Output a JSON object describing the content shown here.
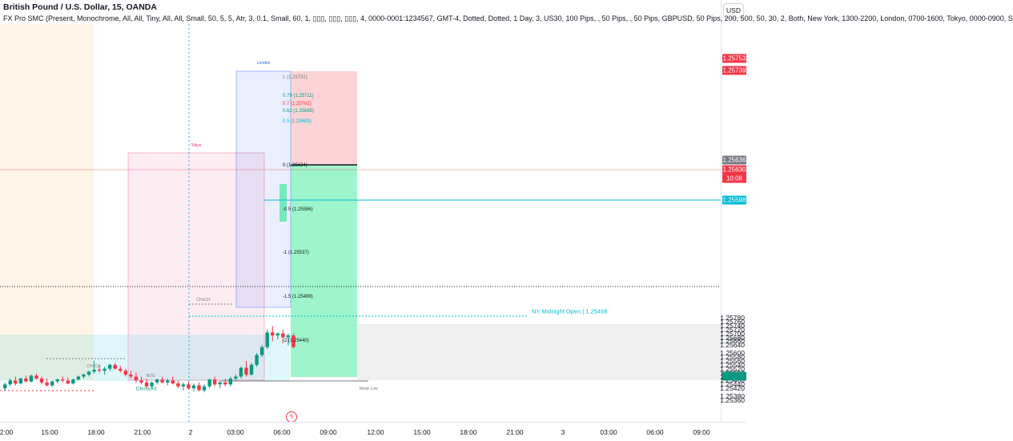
{
  "legend": {
    "symbol_line": "British Pound / U.S. Dollar, 15, OANDA",
    "indicator_line": "FX Pro SMC (Present, Monochrome, All, All, Tiny, All, All, Small, 50, 5, 5, Atr, 3, 0.1, Small, 60, 1, ▯▯▯, ▯▯▯, ▯▯▯, 4, 0000-0001:1234567, GMT-4, Dotted, Dotted, 1 Day, 3, US30, 100 Pips, , 50 Pips, , 50 Pips, GBPUSD, 50 Pips, 200, 500, 50, 30, 2, Both, New York, 1300-2200, London, 0700-1600, Tokyo, 0000-0900, S"
  },
  "price_axis": {
    "currency_button": "USD",
    "labels": [
      "1.25780",
      "1.25760",
      "1.25740",
      "1.25720",
      "1.25700",
      "1.25680",
      "1.25660",
      "1.25640",
      "1.25600",
      "1.25580",
      "1.25560",
      "1.25540",
      "1.25520",
      "1.25500",
      "1.25480",
      "1.25460",
      "1.25440",
      "1.25420",
      "1.25380",
      "1.25360"
    ],
    "tags": [
      {
        "text": "1.25753",
        "color": "#f23645"
      },
      {
        "text": "1.25739",
        "color": "#f23645"
      },
      {
        "text": "1.25636",
        "color": "#787b86"
      },
      {
        "text": "1.25630",
        "color": "#f23645"
      },
      {
        "text": "10:08",
        "color": "#f23645"
      },
      {
        "text": "1.25598",
        "color": "#00bcd4"
      },
      {
        "text": "",
        "color": "#089981"
      }
    ]
  },
  "time_axis": [
    "2:00",
    "15:00",
    "18:00",
    "21:00",
    "2",
    "03:00",
    "06:00",
    "09:00",
    "12:00",
    "15:00",
    "18:00",
    "21:00",
    "3",
    "03:00",
    "06:00",
    "09:00"
  ],
  "chart_labels": {
    "fib": [
      "1 (1.25731)",
      "0.79 (1.25711)",
      "0.7 (1.25702)",
      "0.62 (1.25695)",
      "0.5 (1.25683)",
      "0 (1.25634)",
      "-0.5 (1.25586)",
      "-1 (1.25537)",
      "-1.5 (1.25489)",
      "-2 (1.25440)"
    ],
    "ny_midnight": "NY Midnight Open | 1.25468",
    "discount": "Discount",
    "london": "London",
    "tokyo": "Tokyo",
    "weak_low": "Weak Low",
    "choch_1": "CHoCH",
    "choch_2": "CHoCH",
    "bos": "BOS"
  },
  "colors": {
    "bull": "#089981",
    "bear": "#f23645",
    "london": "#2962ff",
    "tokyo": "#e91e63",
    "newyork": "#ff9800",
    "premium": "#f23645",
    "discount": "#00e676",
    "cyan": "#00bcd4"
  },
  "chart_data": {
    "type": "candlestick",
    "timeframe": "15",
    "y_range": [
      1.25355,
      1.2579
    ],
    "current_price": 1.2563,
    "candles": [
      [
        1.2542,
        1.2545,
        1.2541,
        1.2544
      ],
      [
        1.2544,
        1.2547,
        1.2543,
        1.2546
      ],
      [
        1.2546,
        1.2548,
        1.25435,
        1.25445
      ],
      [
        1.25445,
        1.25475,
        1.2544,
        1.2547
      ],
      [
        1.2547,
        1.25485,
        1.2545,
        1.25455
      ],
      [
        1.25455,
        1.2549,
        1.2545,
        1.25485
      ],
      [
        1.25485,
        1.25495,
        1.25465,
        1.2547
      ],
      [
        1.2547,
        1.2548,
        1.2544,
        1.2545
      ],
      [
        1.2545,
        1.2547,
        1.2543,
        1.25435
      ],
      [
        1.25435,
        1.2546,
        1.25425,
        1.25455
      ],
      [
        1.25455,
        1.2547,
        1.25445,
        1.25465
      ],
      [
        1.25465,
        1.2548,
        1.2545,
        1.2546
      ],
      [
        1.2546,
        1.25475,
        1.2544,
        1.25445
      ],
      [
        1.25445,
        1.2547,
        1.2544,
        1.25465
      ],
      [
        1.25465,
        1.25485,
        1.2546,
        1.2548
      ],
      [
        1.2548,
        1.25495,
        1.2547,
        1.2549
      ],
      [
        1.2549,
        1.2551,
        1.2548,
        1.25505
      ],
      [
        1.25505,
        1.2556,
        1.25495,
        1.25515
      ],
      [
        1.25515,
        1.25535,
        1.255,
        1.2551
      ],
      [
        1.2551,
        1.2553,
        1.2549,
        1.2552
      ],
      [
        1.2552,
        1.25545,
        1.2551,
        1.2554
      ],
      [
        1.2554,
        1.2555,
        1.25515,
        1.2552
      ],
      [
        1.2552,
        1.25535,
        1.255,
        1.2551
      ],
      [
        1.2551,
        1.2552,
        1.2548,
        1.2549
      ],
      [
        1.2549,
        1.2551,
        1.2547,
        1.2548
      ],
      [
        1.2548,
        1.255,
        1.2545,
        1.2546
      ],
      [
        1.2546,
        1.2548,
        1.2544,
        1.2545
      ],
      [
        1.2545,
        1.2547,
        1.2542,
        1.2543
      ],
      [
        1.2543,
        1.25455,
        1.2542,
        1.2545
      ],
      [
        1.2545,
        1.2547,
        1.2544,
        1.25465
      ],
      [
        1.25465,
        1.2548,
        1.25445,
        1.2545
      ],
      [
        1.2545,
        1.2547,
        1.25435,
        1.2546
      ],
      [
        1.2546,
        1.2548,
        1.2544,
        1.25445
      ],
      [
        1.25445,
        1.2546,
        1.2542,
        1.2543
      ],
      [
        1.2543,
        1.2545,
        1.2541,
        1.2544
      ],
      [
        1.2544,
        1.25455,
        1.25415,
        1.2542
      ],
      [
        1.2542,
        1.25445,
        1.25405,
        1.25435
      ],
      [
        1.25435,
        1.2545,
        1.25405,
        1.2541
      ],
      [
        1.2541,
        1.2544,
        1.254,
        1.2543
      ],
      [
        1.2543,
        1.2547,
        1.2542,
        1.25465
      ],
      [
        1.25465,
        1.2548,
        1.2543,
        1.2544
      ],
      [
        1.2544,
        1.2546,
        1.2542,
        1.2545
      ],
      [
        1.2545,
        1.2547,
        1.2543,
        1.2544
      ],
      [
        1.2544,
        1.2548,
        1.2543,
        1.2547
      ],
      [
        1.2547,
        1.2549,
        1.2546,
        1.2548
      ],
      [
        1.2548,
        1.2553,
        1.2547,
        1.25525
      ],
      [
        1.25525,
        1.2556,
        1.2548,
        1.2549
      ],
      [
        1.2549,
        1.2555,
        1.25485,
        1.2554
      ],
      [
        1.2554,
        1.256,
        1.2553,
        1.2559
      ],
      [
        1.2559,
        1.2564,
        1.2558,
        1.2563
      ],
      [
        1.2563,
        1.2572,
        1.2562,
        1.25705
      ],
      [
        1.25705,
        1.25739,
        1.2566,
        1.2569
      ],
      [
        1.2569,
        1.25705,
        1.2567,
        1.257
      ],
      [
        1.257,
        1.2572,
        1.2565,
        1.2568
      ],
      [
        1.2568,
        1.257,
        1.2564,
        1.2569
      ],
      [
        1.2569,
        1.257,
        1.25625,
        1.2563
      ]
    ]
  }
}
